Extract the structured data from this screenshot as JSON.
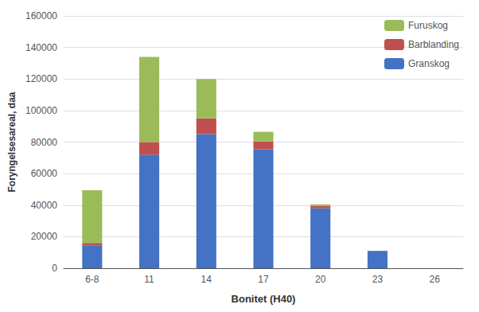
{
  "chart_data": {
    "type": "bar",
    "stacked": true,
    "categories": [
      "6-8",
      "11",
      "14",
      "17",
      "20",
      "23",
      "26"
    ],
    "series": [
      {
        "name": "Granskog",
        "color": "#4472C4",
        "values": [
          14500,
          72000,
          85000,
          75500,
          38000,
          11000,
          0
        ]
      },
      {
        "name": "Barblanding",
        "color": "#C0504D",
        "values": [
          1500,
          8000,
          10000,
          5000,
          1500,
          0,
          0
        ]
      },
      {
        "name": "Furuskog",
        "color": "#9BBB59",
        "values": [
          33500,
          54000,
          25000,
          6000,
          1000,
          0,
          0
        ]
      }
    ],
    "xlabel": "Bonitet (H40)",
    "ylabel": "Foryngelsesareal, daa",
    "ylim": [
      0,
      160000
    ],
    "yticks": [
      0,
      20000,
      40000,
      60000,
      80000,
      100000,
      120000,
      140000,
      160000
    ],
    "grid": true,
    "legend": "upper right"
  }
}
